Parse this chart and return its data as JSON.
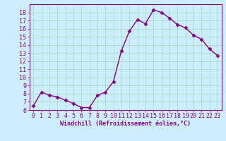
{
  "x": [
    0,
    1,
    2,
    3,
    4,
    5,
    6,
    7,
    8,
    9,
    10,
    11,
    12,
    13,
    14,
    15,
    16,
    17,
    18,
    19,
    20,
    21,
    22,
    23
  ],
  "y": [
    6.5,
    8.2,
    7.8,
    7.6,
    7.2,
    6.8,
    6.3,
    6.3,
    7.8,
    8.2,
    9.5,
    13.3,
    15.7,
    17.1,
    16.6,
    18.3,
    18.0,
    17.3,
    16.5,
    16.1,
    15.2,
    14.7,
    13.5,
    12.7
  ],
  "line_color": "#880088",
  "bg_color": "#cceeff",
  "grid_color": "#aaddcc",
  "xlabel": "Windchill (Refroidissement éolien,°C)",
  "ylim": [
    6,
    19
  ],
  "xlim": [
    -0.5,
    23.5
  ],
  "yticks": [
    6,
    7,
    8,
    9,
    10,
    11,
    12,
    13,
    14,
    15,
    16,
    17,
    18
  ],
  "xtick_labels": [
    "0",
    "1",
    "2",
    "3",
    "4",
    "5",
    "6",
    "7",
    "8",
    "9",
    "10",
    "11",
    "12",
    "13",
    "14",
    "15",
    "16",
    "17",
    "18",
    "19",
    "20",
    "21",
    "22",
    "23"
  ],
  "tick_color": "#880088",
  "label_color": "#880088",
  "marker": "D",
  "markersize": 2.5,
  "linewidth": 1.0,
  "tick_fontsize": 6.0,
  "xlabel_fontsize": 6.0
}
